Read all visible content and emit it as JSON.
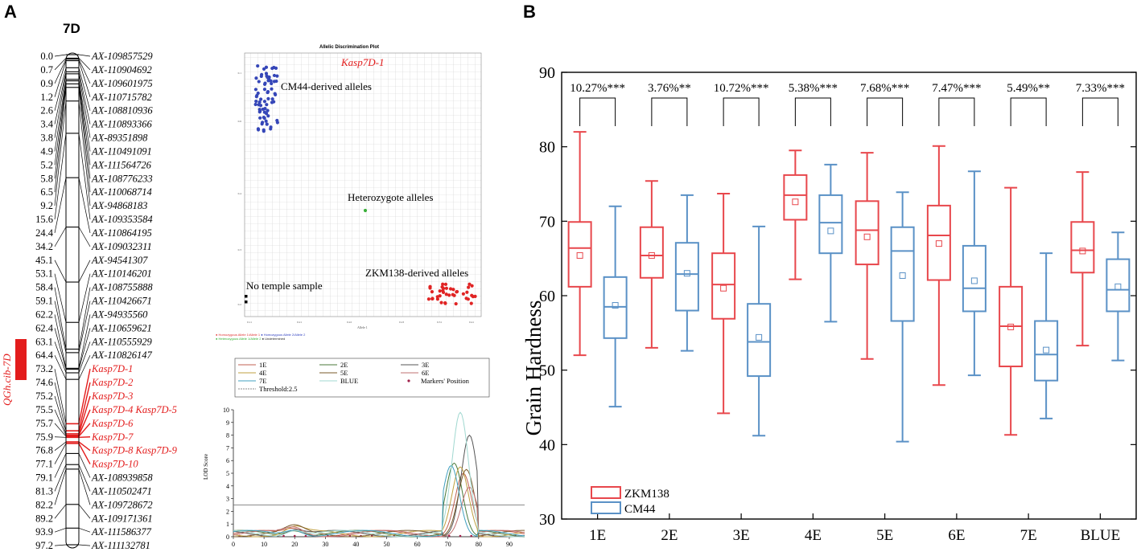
{
  "panel_a": {
    "letter": "A",
    "chromosome": "7D",
    "qtl_label": "QGh.cib-7D",
    "markers": [
      {
        "pos": "0.0",
        "name": "AX-109857529",
        "hl": false
      },
      {
        "pos": "0.7",
        "name": "AX-110904692",
        "hl": false
      },
      {
        "pos": "0.9",
        "name": "AX-109601975",
        "hl": false
      },
      {
        "pos": "1.2",
        "name": "AX-110715782",
        "hl": false
      },
      {
        "pos": "2.6",
        "name": "AX-108810936",
        "hl": false
      },
      {
        "pos": "3.4",
        "name": "AX-110893366",
        "hl": false
      },
      {
        "pos": "3.8",
        "name": "AX-89351898",
        "hl": false
      },
      {
        "pos": "4.9",
        "name": "AX-110491091",
        "hl": false
      },
      {
        "pos": "5.2",
        "name": "AX-111564726",
        "hl": false
      },
      {
        "pos": "5.8",
        "name": "AX-108776233",
        "hl": false
      },
      {
        "pos": "6.5",
        "name": "AX-110068714",
        "hl": false
      },
      {
        "pos": "9.2",
        "name": "AX-94868183",
        "hl": false
      },
      {
        "pos": "15.6",
        "name": "AX-109353584",
        "hl": false
      },
      {
        "pos": "24.4",
        "name": "AX-110864195",
        "hl": false
      },
      {
        "pos": "34.2",
        "name": "AX-109032311",
        "hl": false
      },
      {
        "pos": "45.1",
        "name": "AX-94541307",
        "hl": false
      },
      {
        "pos": "53.1",
        "name": "AX-110146201",
        "hl": false
      },
      {
        "pos": "58.4",
        "name": "AX-108755888",
        "hl": false
      },
      {
        "pos": "59.1",
        "name": "AX-110426671",
        "hl": false
      },
      {
        "pos": "62.2",
        "name": "AX-94935560",
        "hl": false
      },
      {
        "pos": "62.4",
        "name": "AX-110659621",
        "hl": false
      },
      {
        "pos": "63.1",
        "name": "AX-110555929",
        "hl": false
      },
      {
        "pos": "64.4",
        "name": "AX-110826147",
        "hl": false
      },
      {
        "pos": "73.2",
        "name": "Kasp7D-1",
        "hl": true
      },
      {
        "pos": "74.6",
        "name": "Kasp7D-2",
        "hl": true
      },
      {
        "pos": "75.2",
        "name": "Kasp7D-3",
        "hl": true
      },
      {
        "pos": "75.5",
        "name": "Kasp7D-4 Kasp7D-5",
        "hl": true
      },
      {
        "pos": "75.7",
        "name": "Kasp7D-6",
        "hl": true
      },
      {
        "pos": "75.9",
        "name": "Kasp7D-7",
        "hl": true
      },
      {
        "pos": "76.8",
        "name": "Kasp7D-8 Kasp7D-9",
        "hl": true
      },
      {
        "pos": "77.1",
        "name": "Kasp7D-10",
        "hl": true
      },
      {
        "pos": "79.1",
        "name": "AX-108939858",
        "hl": false
      },
      {
        "pos": "81.3",
        "name": "AX-110502471",
        "hl": false
      },
      {
        "pos": "82.2",
        "name": "AX-109728672",
        "hl": false
      },
      {
        "pos": "89.2",
        "name": "AX-109171361",
        "hl": false
      },
      {
        "pos": "93.9",
        "name": "AX-111586377",
        "hl": false
      },
      {
        "pos": "97.2",
        "name": "AX-111132781",
        "hl": false
      }
    ],
    "allelic_plot": {
      "title": "Allelic Discrimination Plot",
      "marker_label": "Kasp7D-1",
      "cm44_label": "CM44-derived alleles",
      "het_label": "Heterozygote alleles",
      "zkm_label": "ZKM138-derived alleles",
      "no_template_label": "No temple sample",
      "x_axis_label": "Allele 1",
      "y_ticks": [
        "0.1",
        "0.6",
        "0.4",
        "0.3",
        "0.2"
      ],
      "x_ticks": [
        "0.11",
        "0.21",
        "0.22",
        "0.23",
        "0.31",
        "0.41"
      ],
      "legend_line1": [
        {
          "text": "● Homozygous Allele 1/Allele 1",
          "color": "#e03030"
        },
        {
          "text": "● Homozygous Allele 2/Allele 2",
          "color": "#3040c0"
        }
      ],
      "legend_line2": [
        {
          "text": "● Heterozygous Allele 1/Allele 2",
          "color": "#30b030"
        },
        {
          "text": "● Undetermined",
          "color": "#222222"
        }
      ]
    },
    "lod_plot": {
      "ylabel": "LOD Score",
      "legend": [
        {
          "name": "1E",
          "color": "#c06050"
        },
        {
          "name": "2E",
          "color": "#4a7a3a"
        },
        {
          "name": "3E",
          "color": "#555555"
        },
        {
          "name": "4E",
          "color": "#c0a040"
        },
        {
          "name": "5E",
          "color": "#7a5a2a"
        },
        {
          "name": "6E",
          "color": "#c07070"
        },
        {
          "name": "7E",
          "color": "#40a0c0"
        },
        {
          "name": "BLUE",
          "color": "#a0d8d0"
        }
      ],
      "threshold_label": "Threshold:2.5",
      "threshold": 2.5,
      "markers_label": "Markers' Position",
      "y_ticks": [
        "0",
        "1",
        "2",
        "3",
        "4",
        "5",
        "6",
        "7",
        "8",
        "9",
        "10"
      ],
      "x_ticks": [
        "0",
        "10",
        "20",
        "30",
        "40",
        "50",
        "60",
        "70",
        "80",
        "90"
      ],
      "peaks": [
        {
          "name": "1E",
          "pos": 75,
          "lod": 5.0
        },
        {
          "name": "2E",
          "pos": 72,
          "lod": 5.8
        },
        {
          "name": "3E",
          "pos": 77,
          "lod": 8.0
        },
        {
          "name": "4E",
          "pos": 74,
          "lod": 5.5
        },
        {
          "name": "5E",
          "pos": 76,
          "lod": 5.3
        },
        {
          "name": "6E",
          "pos": 77,
          "lod": 3.9
        },
        {
          "name": "7E",
          "pos": 71,
          "lod": 5.6
        },
        {
          "name": "BLUE",
          "pos": 74,
          "lod": 9.8
        }
      ]
    }
  },
  "chart_data": {
    "type": "box",
    "panel_letter": "B",
    "ylabel": "Grain Hardness",
    "xlabel": "",
    "ylim": [
      30,
      90
    ],
    "y_ticks": [
      "30",
      "40",
      "50",
      "60",
      "70",
      "80",
      "90"
    ],
    "categories": [
      "1E",
      "2E",
      "3E",
      "4E",
      "5E",
      "6E",
      "7E",
      "BLUE"
    ],
    "significance": [
      "10.27%***",
      "3.76%**",
      "10.72%***",
      "5.38%***",
      "7.68%***",
      "7.47%***",
      "5.49%**",
      "7.33%***"
    ],
    "series": [
      {
        "name": "ZKM138",
        "color": "#e8474c",
        "boxes": [
          {
            "min": 52.0,
            "q1": 61.2,
            "median": 66.4,
            "q3": 69.9,
            "max": 82.0,
            "mean": 65.4
          },
          {
            "min": 53.0,
            "q1": 62.4,
            "median": 65.4,
            "q3": 69.2,
            "max": 75.4,
            "mean": 65.4
          },
          {
            "min": 44.2,
            "q1": 56.9,
            "median": 61.5,
            "q3": 65.7,
            "max": 73.7,
            "mean": 61.0
          },
          {
            "min": 62.2,
            "q1": 70.2,
            "median": 73.5,
            "q3": 76.2,
            "max": 79.5,
            "mean": 72.6
          },
          {
            "min": 51.5,
            "q1": 64.2,
            "median": 68.8,
            "q3": 72.7,
            "max": 79.2,
            "mean": 67.9
          },
          {
            "min": 48.0,
            "q1": 62.1,
            "median": 68.1,
            "q3": 72.1,
            "max": 80.1,
            "mean": 67.0
          },
          {
            "min": 41.3,
            "q1": 50.5,
            "median": 55.9,
            "q3": 61.2,
            "max": 74.5,
            "mean": 55.8
          },
          {
            "min": 53.3,
            "q1": 63.1,
            "median": 66.1,
            "q3": 69.9,
            "max": 76.6,
            "mean": 66.0
          }
        ]
      },
      {
        "name": "CM44",
        "color": "#5a91c6",
        "boxes": [
          {
            "min": 45.1,
            "q1": 54.3,
            "median": 58.5,
            "q3": 62.5,
            "max": 72.0,
            "mean": 58.7
          },
          {
            "min": 52.6,
            "q1": 58.0,
            "median": 62.9,
            "q3": 67.1,
            "max": 73.5,
            "mean": 63.0
          },
          {
            "min": 41.2,
            "q1": 49.2,
            "median": 53.8,
            "q3": 58.9,
            "max": 69.3,
            "mean": 54.4
          },
          {
            "min": 56.5,
            "q1": 65.7,
            "median": 69.8,
            "q3": 73.5,
            "max": 77.6,
            "mean": 68.7
          },
          {
            "min": 40.4,
            "q1": 56.6,
            "median": 66.0,
            "q3": 69.2,
            "max": 73.9,
            "mean": 62.7
          },
          {
            "min": 49.3,
            "q1": 57.9,
            "median": 61.0,
            "q3": 66.7,
            "max": 76.7,
            "mean": 62.0
          },
          {
            "min": 43.5,
            "q1": 48.6,
            "median": 52.1,
            "q3": 56.6,
            "max": 65.7,
            "mean": 52.7
          },
          {
            "min": 51.3,
            "q1": 57.9,
            "median": 60.8,
            "q3": 64.9,
            "max": 68.5,
            "mean": 61.2
          }
        ]
      }
    ],
    "legend": [
      "ZKM138",
      "CM44"
    ]
  }
}
